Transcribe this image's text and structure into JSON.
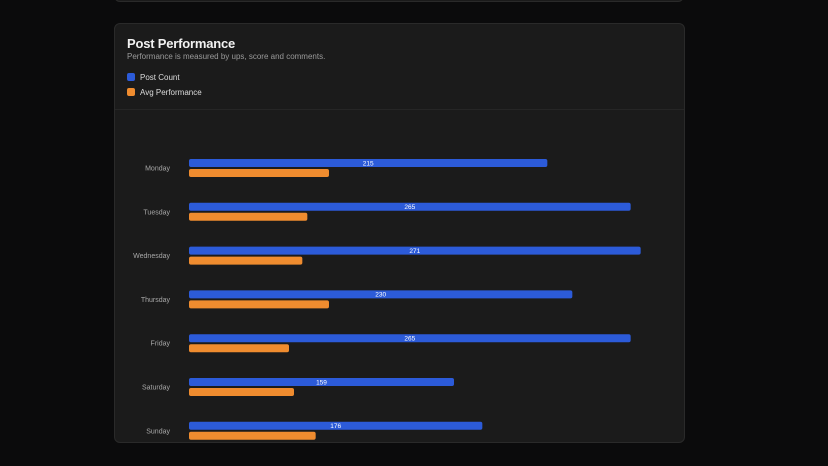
{
  "card": {
    "title": "Post Performance",
    "subtitle": "Performance is measured by ups, score and comments."
  },
  "legend": [
    {
      "label": "Post Count",
      "color": "#2c5bd9"
    },
    {
      "label": "Avg Performance",
      "color": "#ef8c2f"
    }
  ],
  "chart_data": {
    "type": "bar",
    "orientation": "horizontal",
    "categories": [
      "Monday",
      "Tuesday",
      "Wednesday",
      "Thursday",
      "Friday",
      "Saturday",
      "Sunday"
    ],
    "series": [
      {
        "name": "Post Count",
        "color": "#2c5bd9",
        "values": [
          215,
          265,
          271,
          230,
          265,
          159,
          176
        ],
        "show_labels": true
      },
      {
        "name": "Avg Performance",
        "color": "#ef8c2f",
        "values": [
          84,
          71,
          68,
          84,
          60,
          63,
          76
        ],
        "show_labels": false
      }
    ],
    "xlim": [
      0,
      276
    ],
    "grid": false,
    "legend_position": "top-left"
  }
}
